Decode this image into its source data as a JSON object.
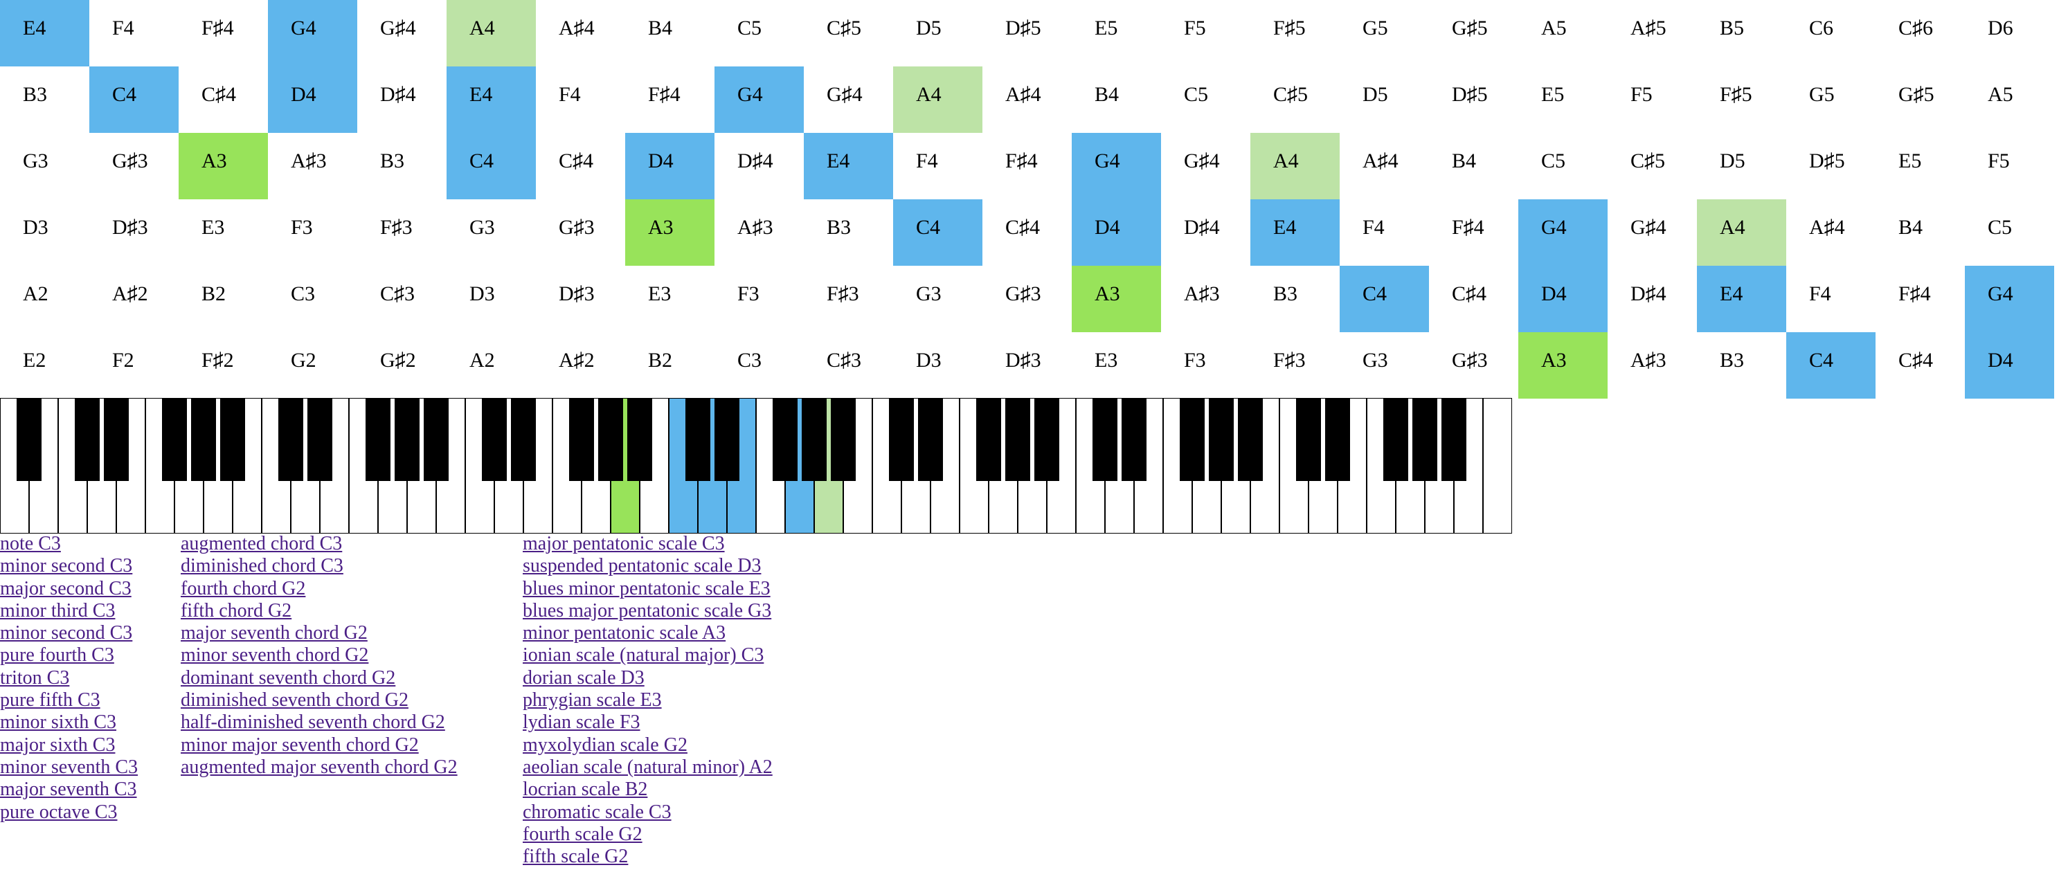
{
  "colors": {
    "blue": "#5fb6ec",
    "green": "#98e35a",
    "light_green": "#bde3a6",
    "link": "#4b1f86"
  },
  "grid": {
    "rows": [
      [
        "E4",
        "F4",
        "F♯4",
        "G4",
        "G♯4",
        "A4",
        "A♯4",
        "B4",
        "C5",
        "C♯5",
        "D5",
        "D♯5",
        "E5",
        "F5",
        "F♯5",
        "G5",
        "G♯5",
        "A5",
        "A♯5",
        "B5",
        "C6",
        "C♯6",
        "D6"
      ],
      [
        "B3",
        "C4",
        "C♯4",
        "D4",
        "D♯4",
        "E4",
        "F4",
        "F♯4",
        "G4",
        "G♯4",
        "A4",
        "A♯4",
        "B4",
        "C5",
        "C♯5",
        "D5",
        "D♯5",
        "E5",
        "F5",
        "F♯5",
        "G5",
        "G♯5",
        "A5"
      ],
      [
        "G3",
        "G♯3",
        "A3",
        "A♯3",
        "B3",
        "C4",
        "C♯4",
        "D4",
        "D♯4",
        "E4",
        "F4",
        "F♯4",
        "G4",
        "G♯4",
        "A4",
        "A♯4",
        "B4",
        "C5",
        "C♯5",
        "D5",
        "D♯5",
        "E5",
        "F5"
      ],
      [
        "D3",
        "D♯3",
        "E3",
        "F3",
        "F♯3",
        "G3",
        "G♯3",
        "A3",
        "A♯3",
        "B3",
        "C4",
        "C♯4",
        "D4",
        "D♯4",
        "E4",
        "F4",
        "F♯4",
        "G4",
        "G♯4",
        "A4",
        "A♯4",
        "B4",
        "C5"
      ],
      [
        "A2",
        "A♯2",
        "B2",
        "C3",
        "C♯3",
        "D3",
        "D♯3",
        "E3",
        "F3",
        "F♯3",
        "G3",
        "G♯3",
        "A3",
        "A♯3",
        "B3",
        "C4",
        "C♯4",
        "D4",
        "D♯4",
        "E4",
        "F4",
        "F♯4",
        "G4"
      ],
      [
        "E2",
        "F2",
        "F♯2",
        "G2",
        "G♯2",
        "A2",
        "A♯2",
        "B2",
        "C3",
        "C♯3",
        "D3",
        "D♯3",
        "E3",
        "F3",
        "F♯3",
        "G3",
        "G♯3",
        "A3",
        "A♯3",
        "B3",
        "C4",
        "C♯4",
        "D4"
      ]
    ],
    "highlights": {
      "blue": [
        "C4",
        "D4",
        "E4",
        "G4"
      ],
      "green": [
        "A3"
      ],
      "light_green": [
        "A4"
      ]
    }
  },
  "piano": {
    "white_key_count": 52,
    "highlighted_white_keys": [
      {
        "index": 21,
        "color": "green"
      },
      {
        "index": 23,
        "color": "blue"
      },
      {
        "index": 24,
        "color": "blue"
      },
      {
        "index": 25,
        "color": "blue"
      },
      {
        "index": 27,
        "color": "blue"
      },
      {
        "index": 28,
        "color": "light_green"
      }
    ]
  },
  "links": {
    "intervals": [
      "note C3",
      "minor second C3",
      "major second C3",
      "minor third C3",
      "minor second C3",
      "pure fourth C3",
      "triton C3",
      "pure fifth C3",
      "minor sixth C3",
      "major sixth C3",
      "minor seventh C3",
      "major seventh C3",
      "pure octave C3"
    ],
    "chords": [
      "augmented chord C3",
      "diminished chord C3",
      "fourth chord G2",
      "fifth chord G2",
      "major seventh chord G2",
      "minor seventh chord G2",
      "dominant seventh chord G2",
      "diminished seventh chord G2",
      "half-diminished seventh chord G2",
      "minor major seventh chord G2",
      "augmented major seventh chord G2"
    ],
    "scales": [
      "major pentatonic scale C3",
      "suspended pentatonic scale D3",
      "blues minor pentatonic scale E3",
      "blues major pentatonic scale G3",
      "minor pentatonic scale A3",
      "ionian scale (natural major) C3",
      "dorian scale D3",
      "phrygian scale E3",
      "lydian scale F3",
      "myxolydian scale G2",
      "aeolian scale (natural minor) A2",
      "locrian scale B2",
      "chromatic scale C3",
      "fourth scale G2",
      "fifth scale G2"
    ]
  }
}
